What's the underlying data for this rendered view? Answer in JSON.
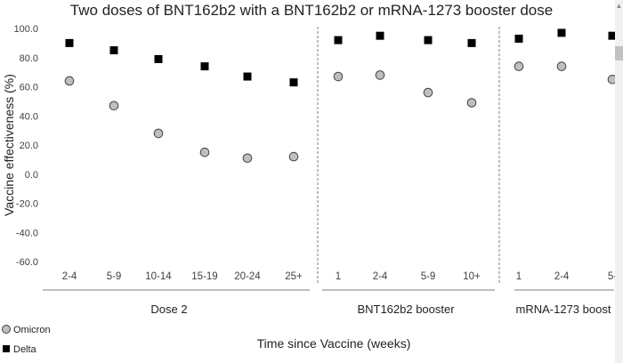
{
  "chart_data": {
    "type": "scatter",
    "title": "Two doses of BNT162b2 with a BNT162b2 or mRNA-1273 booster dose",
    "xlabel": "Time since Vaccine (weeks)",
    "ylabel": "Vaccine effectiveness (%)",
    "ylim": [
      -60,
      100
    ],
    "yticks": [
      "100.0",
      "80.0",
      "60.0",
      "40.0",
      "20.0",
      "0.0",
      "-20.0",
      "-40.0",
      "-60.0"
    ],
    "grid": false,
    "legend_position": "bottom-left",
    "groups": [
      {
        "label": "Dose 2",
        "categories": [
          "2-4",
          "5-9",
          "10-14",
          "15-19",
          "20-24",
          "25+"
        ]
      },
      {
        "label": "BNT162b2 booster",
        "categories": [
          "1",
          "2-4",
          "5-9",
          "10+"
        ]
      },
      {
        "label": "mRNA-1273 boost",
        "categories": [
          "1",
          "2-4",
          "5-"
        ]
      }
    ],
    "series": [
      {
        "name": "Omicron",
        "marker": "circle",
        "color": "#bfbfbf",
        "values": [
          [
            64,
            47,
            28,
            15,
            11,
            12
          ],
          [
            67,
            68,
            56,
            49
          ],
          [
            74,
            74,
            65
          ]
        ]
      },
      {
        "name": "Delta",
        "marker": "square",
        "color": "#000000",
        "values": [
          [
            90,
            85,
            79,
            74,
            67,
            63
          ],
          [
            92,
            95,
            92,
            90
          ],
          [
            93,
            97,
            95
          ]
        ]
      }
    ]
  }
}
